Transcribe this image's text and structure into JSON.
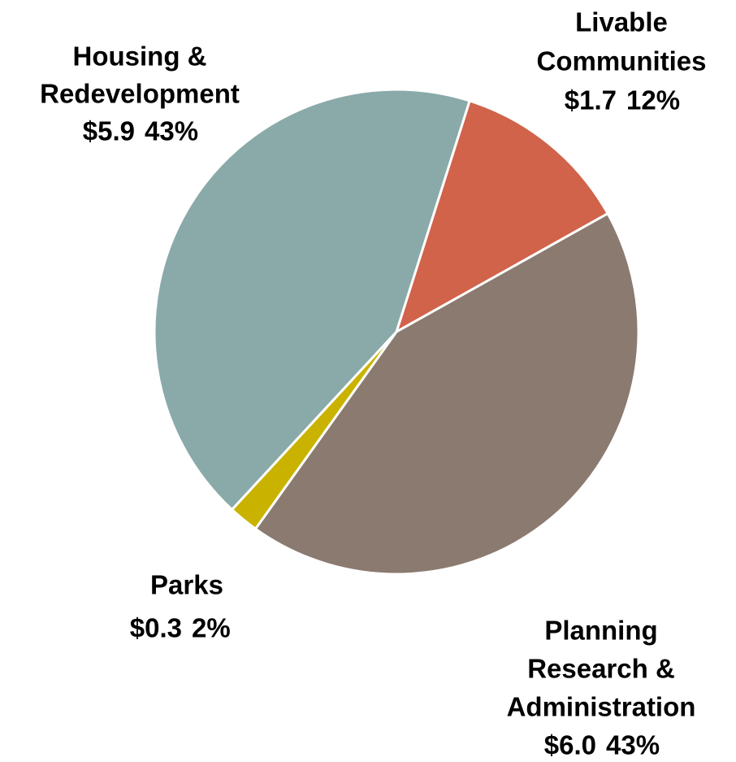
{
  "chart_data": {
    "type": "pie",
    "categories": [
      [
        "Livable",
        "Communities"
      ],
      [
        "Planning",
        "Research &",
        "Administration"
      ],
      [
        "Parks"
      ],
      [
        "Housing &",
        "Redevelopment"
      ]
    ],
    "values": [
      12,
      43,
      2,
      43
    ],
    "value_labels": [
      "12%",
      "43%",
      "2%",
      "43%"
    ],
    "amount_labels": [
      "$1.7",
      "$6.0",
      "$0.3",
      "$5.9"
    ],
    "colors": [
      "#d0634a",
      "#8b7a70",
      "#c9b300",
      "#8aaaa9"
    ]
  }
}
